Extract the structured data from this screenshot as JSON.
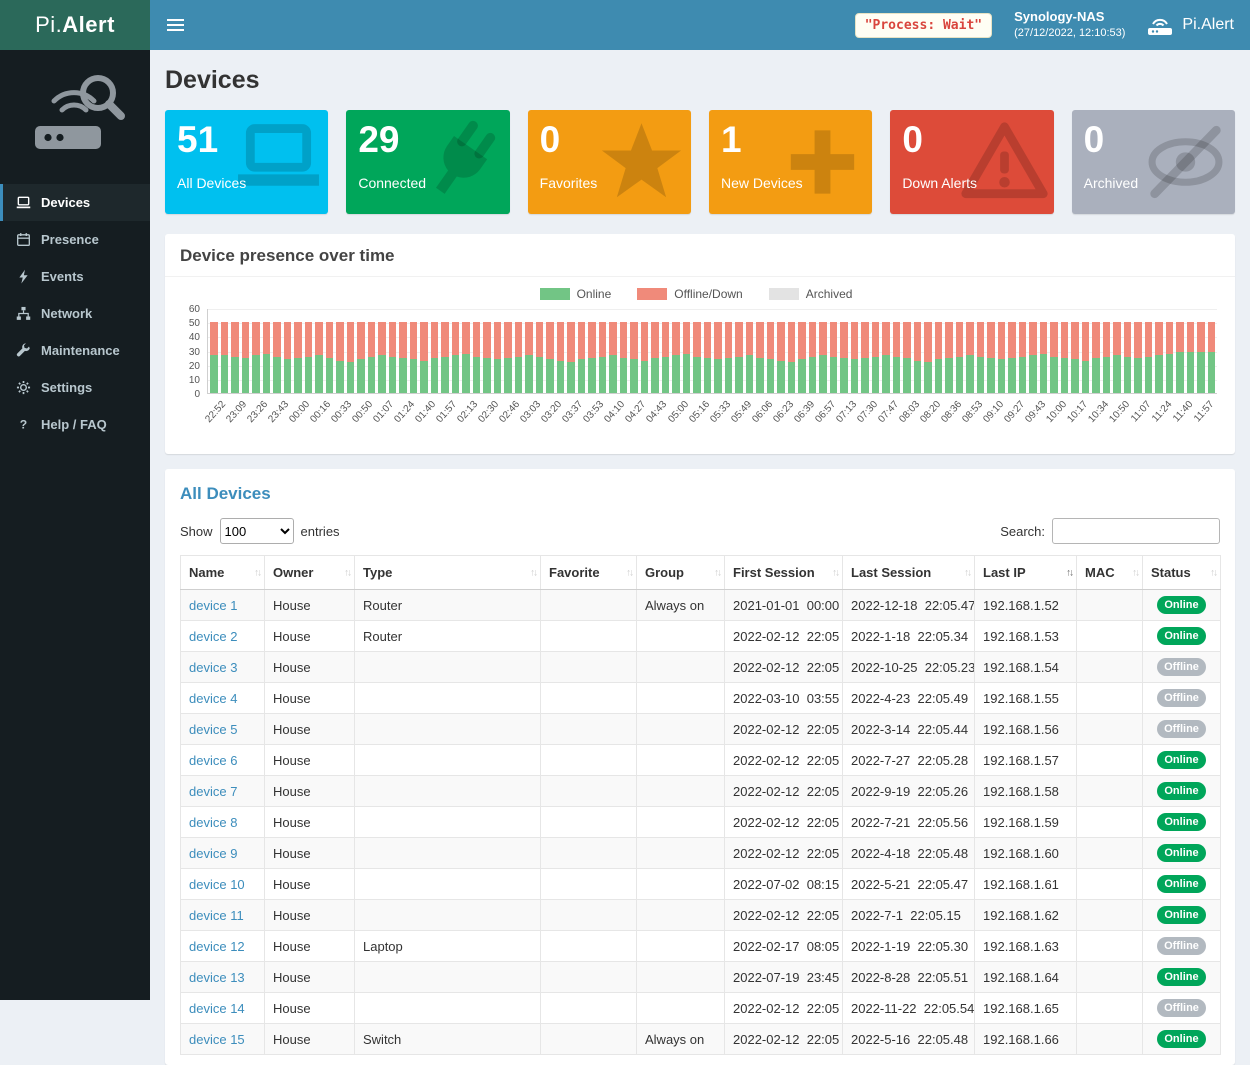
{
  "theme": {
    "navbar_bg": "#3e8bb0",
    "logo_bg": "#2b695a",
    "sidebar_bg": "#151d21",
    "sidebar_active_bg": "#1e282c",
    "sidebar_text": "#b8c7ce",
    "content_bg": "#ecf0f5",
    "link_color": "#3c8dbc",
    "panel_title_color": "#3c8dbc",
    "process_text_color": "#d9453d"
  },
  "topbar": {
    "logo_prefix": "Pi.",
    "logo_suffix": "Alert",
    "process_status": "\"Process: Wait\"",
    "nas_name": "Synology-NAS",
    "nas_time": "(27/12/2022, 12:10:53)",
    "brand": "Pi.Alert"
  },
  "sidebar": {
    "items": [
      {
        "label": "Devices",
        "icon": "laptop-icon",
        "active": true
      },
      {
        "label": "Presence",
        "icon": "calendar-icon",
        "active": false
      },
      {
        "label": "Events",
        "icon": "bolt-icon",
        "active": false
      },
      {
        "label": "Network",
        "icon": "network-icon",
        "active": false
      },
      {
        "label": "Maintenance",
        "icon": "wrench-icon",
        "active": false
      },
      {
        "label": "Settings",
        "icon": "gear-icon",
        "active": false
      },
      {
        "label": "Help / FAQ",
        "icon": "question-icon",
        "active": false
      }
    ]
  },
  "page": {
    "title": "Devices"
  },
  "infoboxes": [
    {
      "value": "51",
      "label": "All Devices",
      "color": "#00c0ef",
      "icon": "laptop-icon"
    },
    {
      "value": "29",
      "label": "Connected",
      "color": "#00a65a",
      "icon": "plug-icon"
    },
    {
      "value": "0",
      "label": "Favorites",
      "color": "#f39c12",
      "icon": "star-icon"
    },
    {
      "value": "1",
      "label": "New Devices",
      "color": "#f39c12",
      "icon": "plus-icon"
    },
    {
      "value": "0",
      "label": "Down Alerts",
      "color": "#dd4b39",
      "icon": "warning-icon"
    },
    {
      "value": "0",
      "label": "Archived",
      "color": "#aab0bd",
      "icon": "eye-slash-icon"
    }
  ],
  "chart_panel": {
    "title": "Device presence over time"
  },
  "chart_data": {
    "type": "bar",
    "stacked": true,
    "title": "Device presence over time",
    "legend": [
      {
        "label": "Online",
        "color": "#72c585"
      },
      {
        "label": "Offline/Down",
        "color": "#f08a7a"
      },
      {
        "label": "Archived",
        "color": "#e3e3e3"
      }
    ],
    "ylim": [
      0,
      60
    ],
    "yticks": [
      0,
      10,
      20,
      30,
      40,
      50,
      60
    ],
    "x": [
      "22:52",
      "23:09",
      "23:26",
      "23:43",
      "00:00",
      "00:16",
      "00:33",
      "00:50",
      "01:07",
      "01:24",
      "01:40",
      "01:57",
      "02:13",
      "02:30",
      "02:46",
      "03:03",
      "03:20",
      "03:37",
      "03:53",
      "04:10",
      "04:27",
      "04:43",
      "05:00",
      "05:16",
      "05:33",
      "05:49",
      "06:06",
      "06:23",
      "06:39",
      "06:57",
      "07:13",
      "07:30",
      "07:47",
      "08:03",
      "08:20",
      "08:36",
      "08:53",
      "09:10",
      "09:27",
      "09:43",
      "10:00",
      "10:17",
      "10:34",
      "10:50",
      "11:07",
      "11:24",
      "11:40",
      "11:57"
    ],
    "series": [
      {
        "name": "Online",
        "values": [
          27,
          27,
          26,
          25,
          27,
          28,
          26,
          24,
          25,
          26,
          27,
          25,
          23,
          22,
          24,
          26,
          27,
          26,
          25,
          24,
          23,
          25,
          26,
          27,
          28,
          26,
          25,
          24,
          25,
          26,
          27,
          26,
          24,
          23,
          22,
          24,
          25,
          26,
          27,
          25,
          24,
          23,
          25,
          26,
          27,
          28,
          26,
          25,
          24,
          25,
          26,
          27,
          25,
          24,
          23,
          22,
          24,
          26,
          27,
          26,
          25,
          24,
          25,
          26,
          27,
          26,
          25,
          23,
          22,
          24,
          25,
          26,
          27,
          26,
          25,
          24,
          25,
          26,
          27,
          28,
          26,
          25,
          24,
          23,
          25,
          26,
          27,
          26,
          25,
          26,
          27,
          28,
          29,
          29,
          29,
          29
        ]
      },
      {
        "name": "Offline/Down",
        "values": [
          24,
          24,
          25,
          26,
          24,
          23,
          25,
          27,
          26,
          25,
          24,
          26,
          28,
          29,
          27,
          25,
          24,
          25,
          26,
          27,
          28,
          26,
          25,
          24,
          23,
          25,
          26,
          27,
          26,
          25,
          24,
          25,
          27,
          28,
          29,
          27,
          26,
          25,
          24,
          26,
          27,
          28,
          26,
          25,
          24,
          23,
          25,
          26,
          27,
          26,
          25,
          24,
          26,
          27,
          28,
          29,
          27,
          25,
          24,
          25,
          26,
          27,
          26,
          25,
          24,
          25,
          26,
          28,
          29,
          27,
          26,
          25,
          24,
          25,
          26,
          27,
          26,
          25,
          24,
          23,
          25,
          26,
          27,
          28,
          26,
          25,
          24,
          25,
          26,
          25,
          24,
          23,
          22,
          22,
          22,
          22
        ]
      },
      {
        "name": "Archived",
        "constant": 0
      }
    ]
  },
  "table_panel": {
    "title": "All Devices",
    "show_label": "Show",
    "entries_label": "entries",
    "page_length": "100",
    "search_label": "Search:",
    "search_value": "",
    "columns": [
      "Name",
      "Owner",
      "Type",
      "Favorite",
      "Group",
      "First Session",
      "Last Session",
      "Last IP",
      "MAC",
      "Status"
    ],
    "sorted_column": "Last IP",
    "status_colors": {
      "Online": "#00a65a",
      "Offline": "#b2b9c0"
    },
    "rows": [
      {
        "name": "device 1",
        "owner": "House",
        "type": "Router",
        "favorite": "",
        "group": "Always on",
        "first_session": "2021-01-01  00:00",
        "last_session": "2022-12-18  22:05.47",
        "last_ip": "192.168.1.52",
        "mac": "",
        "status": "Online"
      },
      {
        "name": "device 2",
        "owner": "House",
        "type": "Router",
        "favorite": "",
        "group": "",
        "first_session": "2022-02-12  22:05",
        "last_session": "2022-1-18  22:05.34",
        "last_ip": "192.168.1.53",
        "mac": "",
        "status": "Online"
      },
      {
        "name": "device 3",
        "owner": "House",
        "type": "",
        "favorite": "",
        "group": "",
        "first_session": "2022-02-12  22:05",
        "last_session": "2022-10-25  22:05.23",
        "last_ip": "192.168.1.54",
        "mac": "",
        "status": "Offline"
      },
      {
        "name": "device 4",
        "owner": "House",
        "type": "",
        "favorite": "",
        "group": "",
        "first_session": "2022-03-10  03:55",
        "last_session": "2022-4-23  22:05.49",
        "last_ip": "192.168.1.55",
        "mac": "",
        "status": "Offline"
      },
      {
        "name": "device 5",
        "owner": "House",
        "type": "",
        "favorite": "",
        "group": "",
        "first_session": "2022-02-12  22:05",
        "last_session": "2022-3-14  22:05.44",
        "last_ip": "192.168.1.56",
        "mac": "",
        "status": "Offline"
      },
      {
        "name": "device 6",
        "owner": "House",
        "type": "",
        "favorite": "",
        "group": "",
        "first_session": "2022-02-12  22:05",
        "last_session": "2022-7-27  22:05.28",
        "last_ip": "192.168.1.57",
        "mac": "",
        "status": "Online"
      },
      {
        "name": "device 7",
        "owner": "House",
        "type": "",
        "favorite": "",
        "group": "",
        "first_session": "2022-02-12  22:05",
        "last_session": "2022-9-19  22:05.26",
        "last_ip": "192.168.1.58",
        "mac": "",
        "status": "Online"
      },
      {
        "name": "device 8",
        "owner": "House",
        "type": "",
        "favorite": "",
        "group": "",
        "first_session": "2022-02-12  22:05",
        "last_session": "2022-7-21  22:05.56",
        "last_ip": "192.168.1.59",
        "mac": "",
        "status": "Online"
      },
      {
        "name": "device 9",
        "owner": "House",
        "type": "",
        "favorite": "",
        "group": "",
        "first_session": "2022-02-12  22:05",
        "last_session": "2022-4-18  22:05.48",
        "last_ip": "192.168.1.60",
        "mac": "",
        "status": "Online"
      },
      {
        "name": "device 10",
        "owner": "House",
        "type": "",
        "favorite": "",
        "group": "",
        "first_session": "2022-07-02  08:15",
        "last_session": "2022-5-21  22:05.47",
        "last_ip": "192.168.1.61",
        "mac": "",
        "status": "Online"
      },
      {
        "name": "device 11",
        "owner": "House",
        "type": "",
        "favorite": "",
        "group": "",
        "first_session": "2022-02-12  22:05",
        "last_session": "2022-7-1  22:05.15",
        "last_ip": "192.168.1.62",
        "mac": "",
        "status": "Online"
      },
      {
        "name": "device 12",
        "owner": "House",
        "type": "Laptop",
        "favorite": "",
        "group": "",
        "first_session": "2022-02-17  08:05",
        "last_session": "2022-1-19  22:05.30",
        "last_ip": "192.168.1.63",
        "mac": "",
        "status": "Offline"
      },
      {
        "name": "device 13",
        "owner": "House",
        "type": "",
        "favorite": "",
        "group": "",
        "first_session": "2022-07-19  23:45",
        "last_session": "2022-8-28  22:05.51",
        "last_ip": "192.168.1.64",
        "mac": "",
        "status": "Online"
      },
      {
        "name": "device 14",
        "owner": "House",
        "type": "",
        "favorite": "",
        "group": "",
        "first_session": "2022-02-12  22:05",
        "last_session": "2022-11-22  22:05.54",
        "last_ip": "192.168.1.65",
        "mac": "",
        "status": "Offline"
      },
      {
        "name": "device 15",
        "owner": "House",
        "type": "Switch",
        "favorite": "",
        "group": "Always on",
        "first_session": "2022-02-12  22:05",
        "last_session": "2022-5-16  22:05.48",
        "last_ip": "192.168.1.66",
        "mac": "",
        "status": "Online"
      }
    ]
  }
}
